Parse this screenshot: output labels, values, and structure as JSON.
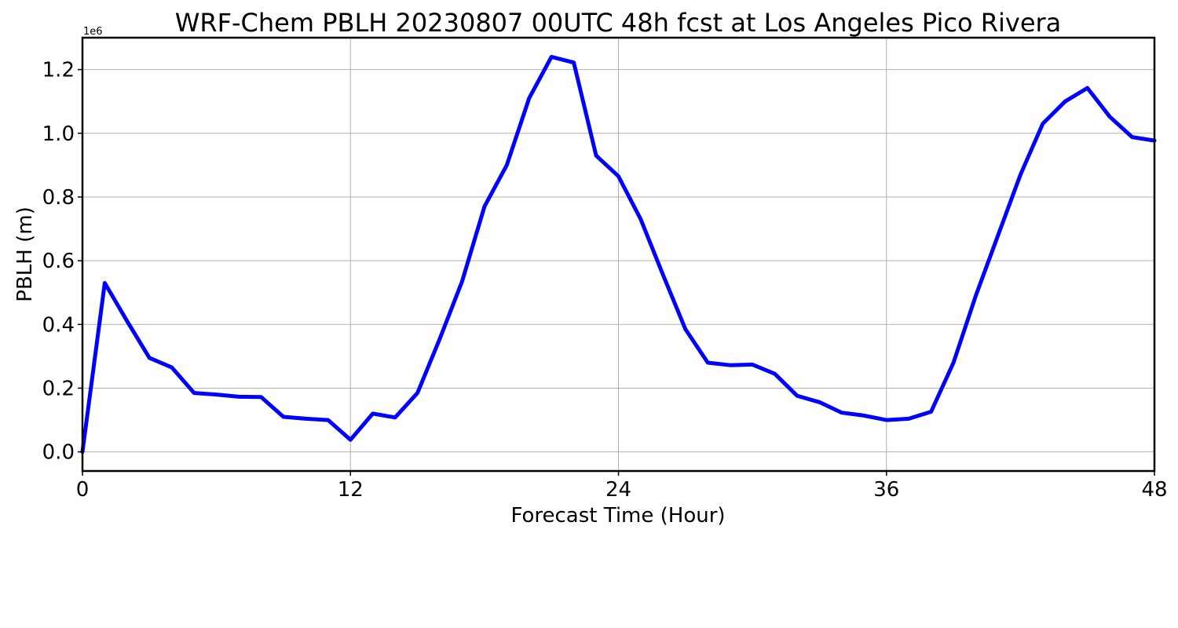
{
  "chart_data": {
    "type": "line",
    "title": "WRF-Chem PBLH  20230807 00UTC 48h fcst at Los Angeles Pico Rivera",
    "xlabel": "Forecast Time (Hour)",
    "ylabel": "PBLH  (m)",
    "y_offset_label": "1e6",
    "xlim": [
      0,
      48
    ],
    "ylim": [
      -0.06,
      1.3
    ],
    "x_ticks": [
      0,
      12,
      24,
      36,
      48
    ],
    "x_tick_labels": [
      "0",
      "12",
      "24",
      "36",
      "48"
    ],
    "y_ticks": [
      0.0,
      0.2,
      0.4,
      0.6,
      0.8,
      1.0,
      1.2
    ],
    "y_tick_labels": [
      "0.0",
      "0.2",
      "0.4",
      "0.6",
      "0.8",
      "1.0",
      "1.2"
    ],
    "grid": true,
    "series": [
      {
        "color": "#0000ff",
        "x": [
          0,
          1,
          2,
          3,
          4,
          5,
          6,
          7,
          8,
          9,
          10,
          11,
          12,
          13,
          14,
          15,
          16,
          17,
          18,
          19,
          20,
          21,
          22,
          23,
          24,
          25,
          26,
          27,
          28,
          29,
          30,
          31,
          32,
          33,
          34,
          35,
          36,
          37,
          38,
          39,
          40,
          41,
          42,
          43,
          44,
          45,
          46,
          47,
          48
        ],
        "values": [
          0.0,
          0.53,
          0.41,
          0.295,
          0.265,
          0.185,
          0.18,
          0.173,
          0.172,
          0.11,
          0.104,
          0.1,
          0.038,
          0.12,
          0.108,
          0.185,
          0.355,
          0.535,
          0.77,
          0.9,
          1.11,
          1.24,
          1.222,
          0.93,
          0.865,
          0.73,
          0.555,
          0.385,
          0.28,
          0.272,
          0.274,
          0.245,
          0.176,
          0.156,
          0.123,
          0.114,
          0.1,
          0.104,
          0.126,
          0.28,
          0.49,
          0.68,
          0.87,
          1.03,
          1.1,
          1.142,
          1.052,
          0.988,
          0.977
        ]
      }
    ]
  }
}
